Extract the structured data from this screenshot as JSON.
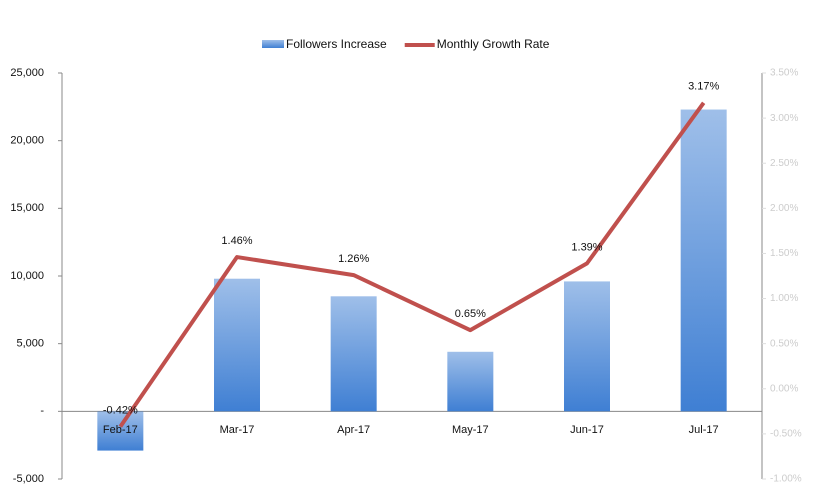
{
  "chart_data": {
    "type": "bar-line",
    "categories": [
      "Feb-17",
      "Mar-17",
      "Apr-17",
      "May-17",
      "Jun-17",
      "Jul-17"
    ],
    "series": [
      {
        "name": "Followers Increase",
        "type": "bar",
        "color": "#3f7fd3",
        "values": [
          -2900,
          9800,
          8500,
          4400,
          9600,
          22300
        ]
      },
      {
        "name": "Monthly Growth Rate",
        "type": "line",
        "axis": "y2",
        "color": "#c0504d",
        "values": [
          -0.42,
          1.46,
          1.26,
          0.65,
          1.39,
          3.17
        ],
        "value_labels": [
          "-0.42%",
          "1.46%",
          "1.26%",
          "0.65%",
          "1.39%",
          "3.17%"
        ]
      }
    ],
    "ylim": [
      -5000,
      25000
    ],
    "yticks": [
      {
        "value": -5000,
        "label": "-5,000"
      },
      {
        "value": 0,
        "label": "-"
      },
      {
        "value": 5000,
        "label": "5,000"
      },
      {
        "value": 10000,
        "label": "10,000"
      },
      {
        "value": 15000,
        "label": "15,000"
      },
      {
        "value": 20000,
        "label": "20,000"
      },
      {
        "value": 25000,
        "label": "25,000"
      }
    ],
    "y2lim": [
      -1.0,
      3.5
    ],
    "y2ticks": [
      {
        "value": -1.0,
        "label": "-1.00%"
      },
      {
        "value": -0.5,
        "label": "-0.50%"
      },
      {
        "value": 0,
        "label": "0.00%"
      },
      {
        "value": 0.5,
        "label": "0.50%"
      },
      {
        "value": 1.0,
        "label": "1.00%"
      },
      {
        "value": 1.5,
        "label": "1.50%"
      },
      {
        "value": 2.0,
        "label": "2.00%"
      },
      {
        "value": 2.5,
        "label": "2.50%"
      },
      {
        "value": 3.0,
        "label": "3.00%"
      },
      {
        "value": 3.5,
        "label": "3.50%"
      }
    ],
    "legend": "top"
  }
}
